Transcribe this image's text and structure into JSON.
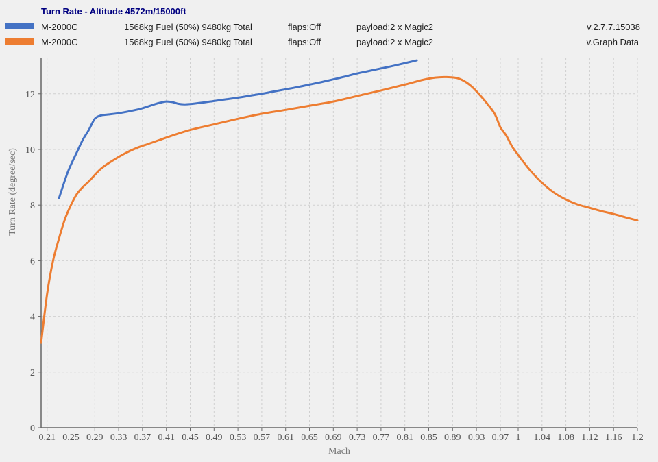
{
  "chart_data": {
    "type": "line",
    "title": "Turn Rate - Altitude 4572m/15000ft",
    "xlabel": "Mach",
    "ylabel": "Turn Rate (degree/sec)",
    "xlim": [
      0.2,
      1.2
    ],
    "ylim": [
      0,
      13.3
    ],
    "x_ticks": [
      0.21,
      0.25,
      0.29,
      0.33,
      0.37,
      0.41,
      0.45,
      0.49,
      0.53,
      0.57,
      0.61,
      0.65,
      0.69,
      0.73,
      0.77,
      0.81,
      0.85,
      0.89,
      0.93,
      0.97,
      1,
      1.04,
      1.08,
      1.12,
      1.16,
      1.2
    ],
    "y_ticks": [
      0,
      2,
      4,
      6,
      8,
      10,
      12
    ],
    "grid": true,
    "legend_position": "top",
    "legend": [
      {
        "series": "M-2000C",
        "fuel": "1568kg Fuel (50%) 9480kg Total",
        "flaps": "flaps:Off",
        "payload": "payload:2 x Magic2",
        "version": "v.2.7.7.15038",
        "color": "#4472c4"
      },
      {
        "series": "M-2000C",
        "fuel": "1568kg Fuel (50%) 9480kg Total",
        "flaps": "flaps:Off",
        "payload": "payload:2 x Magic2",
        "version": "v.Graph Data",
        "color": "#ed7d31"
      }
    ],
    "series": [
      {
        "name": "M-2000C",
        "color": "#4472c4",
        "x": [
          0.23,
          0.245,
          0.26,
          0.27,
          0.28,
          0.29,
          0.3,
          0.31,
          0.33,
          0.35,
          0.37,
          0.39,
          0.4,
          0.41,
          0.42,
          0.43,
          0.44,
          0.45,
          0.47,
          0.49,
          0.51,
          0.53,
          0.55,
          0.57,
          0.59,
          0.61,
          0.63,
          0.65,
          0.67,
          0.69,
          0.71,
          0.73,
          0.75,
          0.77,
          0.79,
          0.81,
          0.83
        ],
        "y": [
          8.25,
          9.2,
          9.9,
          10.35,
          10.7,
          11.1,
          11.22,
          11.25,
          11.3,
          11.38,
          11.48,
          11.62,
          11.68,
          11.72,
          11.7,
          11.64,
          11.62,
          11.63,
          11.68,
          11.74,
          11.8,
          11.86,
          11.93,
          12.0,
          12.08,
          12.16,
          12.24,
          12.33,
          12.42,
          12.52,
          12.62,
          12.73,
          12.82,
          12.91,
          13.0,
          13.1,
          13.2
        ]
      },
      {
        "name": "M-2000C",
        "color": "#ed7d31",
        "x": [
          0.2,
          0.21,
          0.22,
          0.23,
          0.24,
          0.25,
          0.26,
          0.27,
          0.28,
          0.3,
          0.32,
          0.34,
          0.36,
          0.38,
          0.4,
          0.42,
          0.45,
          0.49,
          0.53,
          0.57,
          0.61,
          0.65,
          0.69,
          0.73,
          0.77,
          0.81,
          0.84,
          0.86,
          0.88,
          0.9,
          0.92,
          0.94,
          0.96,
          0.97,
          0.98,
          0.99,
          1.0,
          1.02,
          1.04,
          1.06,
          1.08,
          1.1,
          1.12,
          1.14,
          1.16,
          1.18,
          1.2
        ],
        "y": [
          3.05,
          4.8,
          6.0,
          6.8,
          7.5,
          8.0,
          8.4,
          8.65,
          8.85,
          9.3,
          9.6,
          9.85,
          10.05,
          10.2,
          10.35,
          10.5,
          10.7,
          10.9,
          11.1,
          11.28,
          11.42,
          11.57,
          11.72,
          11.92,
          12.12,
          12.33,
          12.5,
          12.58,
          12.6,
          12.55,
          12.3,
          11.85,
          11.3,
          10.8,
          10.5,
          10.1,
          9.8,
          9.25,
          8.8,
          8.45,
          8.2,
          8.02,
          7.9,
          7.78,
          7.68,
          7.56,
          7.45
        ]
      }
    ]
  }
}
